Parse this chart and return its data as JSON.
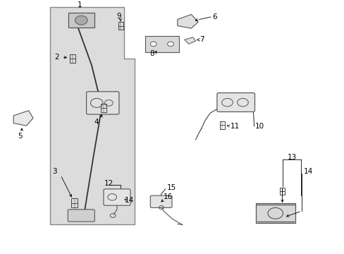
{
  "bg_color": "#ffffff",
  "part_color": "#555555",
  "shade_color": "#e8e8e8"
}
